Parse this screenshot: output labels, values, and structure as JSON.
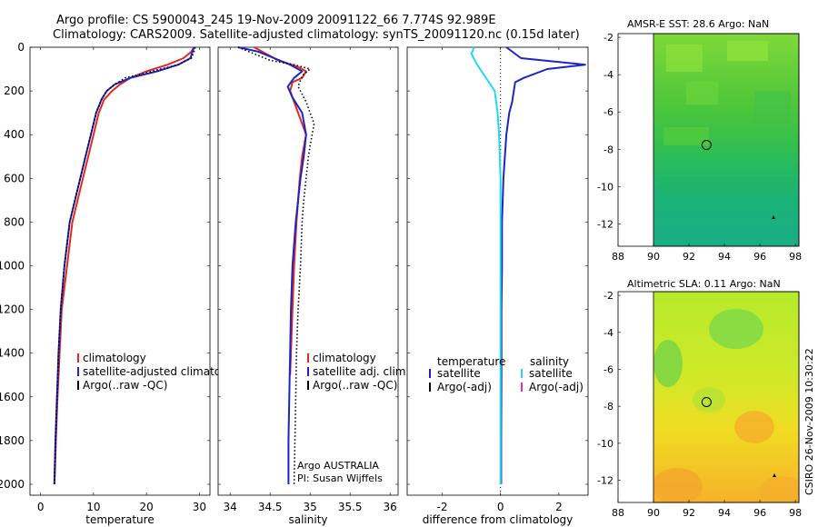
{
  "header": {
    "line1": "Argo profile: CS 5900043_245 19-Nov-2009 20091122_66 7.774S 92.989E",
    "line2": "Climatology: CARS2009. Satellite-adjusted climatology: synTS_20091120.nc (0.15d later)"
  },
  "footer_stamp": "CSIRO 26-Nov-2009 10:30:22",
  "colors": {
    "red": "#e8271c",
    "blue": "#1b25c7",
    "black": "#000000",
    "cyan": "#22d8f0",
    "magenta": "#e030c8"
  },
  "chart_data": [
    {
      "type": "line",
      "title": "",
      "xlabel": "temperature",
      "ylabel": "",
      "xlim": [
        -2,
        32
      ],
      "ylim": [
        2050,
        0
      ],
      "xticks": [
        0,
        10,
        20,
        30
      ],
      "yticks": [
        0,
        200,
        400,
        600,
        800,
        1000,
        1200,
        1400,
        1600,
        1800,
        2000
      ],
      "legend": [
        "climatology",
        "satellite-adjusted climatology",
        "Argo(..raw -QC)"
      ],
      "series": [
        {
          "name": "climatology",
          "color": "red",
          "x": [
            29,
            28.5,
            27,
            24,
            20,
            17,
            15,
            13.5,
            12,
            11,
            10,
            9,
            8,
            7,
            6,
            5,
            4,
            3.6,
            3.2,
            2.9,
            2.7,
            2.6
          ],
          "y": [
            0,
            20,
            50,
            80,
            110,
            140,
            170,
            200,
            240,
            300,
            400,
            500,
            600,
            700,
            800,
            1000,
            1200,
            1400,
            1600,
            1800,
            1950,
            2000
          ]
        },
        {
          "name": "satellite-adjusted climatology",
          "color": "blue",
          "x": [
            29,
            28.7,
            28.3,
            26,
            22,
            17,
            14,
            12.5,
            11.5,
            10.5,
            9.5,
            8.5,
            7.5,
            6.5,
            5.5,
            4.5,
            3.8,
            3.4,
            3.1,
            2.8,
            2.6
          ],
          "y": [
            0,
            20,
            50,
            80,
            110,
            140,
            170,
            200,
            240,
            300,
            400,
            500,
            600,
            700,
            800,
            1000,
            1200,
            1400,
            1600,
            1800,
            2000
          ]
        },
        {
          "name": "Argo(..raw -QC)",
          "color": "black",
          "dotted": true,
          "x": [
            29.2,
            29,
            28.5,
            26,
            21,
            16,
            14,
            12.5,
            11.5,
            10.5,
            9.5,
            8.5,
            7.5,
            6.5,
            5.5,
            4.5,
            3.8,
            3.4,
            3.1,
            2.8,
            2.6
          ],
          "y": [
            0,
            20,
            50,
            80,
            110,
            140,
            170,
            200,
            240,
            300,
            400,
            500,
            600,
            700,
            800,
            1000,
            1200,
            1400,
            1600,
            1800,
            2000
          ]
        }
      ]
    },
    {
      "type": "line",
      "title": "",
      "xlabel": "salinity",
      "ylabel": "",
      "xlim": [
        33.85,
        36.1
      ],
      "ylim": [
        2050,
        0
      ],
      "xticks": [
        34,
        34.5,
        35,
        35.5,
        36
      ],
      "xticklabels": [
        "34",
        "34.5",
        "35",
        "35.5",
        "36"
      ],
      "legend": [
        "climatology",
        "satellite adj. clim.",
        "Argo(..raw -QC)"
      ],
      "annotation": [
        "Argo AUSTRALIA",
        "PI: Susan Wijffels"
      ],
      "series": [
        {
          "name": "climatology",
          "color": "red",
          "x": [
            34.3,
            34.6,
            34.85,
            34.95,
            34.9,
            34.78,
            34.75,
            34.85,
            34.95,
            34.9,
            34.87,
            34.85,
            34.83,
            34.8,
            34.78,
            34.76,
            34.75,
            34.75
          ],
          "y": [
            0,
            60,
            90,
            110,
            140,
            160,
            200,
            300,
            400,
            500,
            600,
            700,
            800,
            1000,
            1200,
            1400,
            1500,
            1500
          ]
        },
        {
          "name": "satellite adj. clim.",
          "color": "blue",
          "x": [
            34.1,
            34.35,
            34.55,
            34.75,
            34.9,
            34.8,
            34.72,
            34.78,
            34.9,
            34.95,
            34.92,
            34.88,
            34.85,
            34.82,
            34.78,
            34.76,
            34.75,
            34.74,
            34.73,
            34.73
          ],
          "y": [
            0,
            20,
            50,
            80,
            110,
            140,
            180,
            230,
            300,
            400,
            500,
            600,
            700,
            800,
            1000,
            1200,
            1400,
            1600,
            1800,
            2000
          ]
        },
        {
          "name": "Argo(..raw -QC)",
          "color": "black",
          "dotted": true,
          "x": [
            34.1,
            34.3,
            34.5,
            34.8,
            35.0,
            34.9,
            34.85,
            34.95,
            35.05,
            35.0,
            34.98,
            34.95,
            34.92,
            34.9,
            34.88,
            34.85,
            34.83,
            34.82,
            34.81,
            34.8
          ],
          "y": [
            0,
            30,
            60,
            80,
            100,
            130,
            180,
            250,
            350,
            450,
            500,
            600,
            700,
            800,
            1000,
            1200,
            1400,
            1600,
            1800,
            2000
          ]
        }
      ]
    },
    {
      "type": "line",
      "title": "",
      "xlabel": "difference from climatology",
      "ylabel": "",
      "xlim": [
        -3.2,
        3
      ],
      "ylim": [
        2050,
        0
      ],
      "xticks": [
        -2,
        0,
        2
      ],
      "legend_left_title": "temperature",
      "legend_right_title": "salinity",
      "legend": [
        "satellite",
        "Argo(-adj)",
        "satellite",
        "Argo(-adj)"
      ],
      "series": [
        {
          "name": "temperature satellite",
          "color": "blue",
          "x": [
            0.2,
            0.7,
            2.9,
            1.6,
            0.8,
            0.5,
            0.4,
            0.3,
            0.2,
            0.1,
            0.05,
            0.05,
            0.03,
            0.03,
            0.02,
            0.02
          ],
          "y": [
            0,
            50,
            80,
            100,
            140,
            160,
            250,
            300,
            400,
            600,
            800,
            1000,
            1200,
            1500,
            1800,
            2000
          ]
        },
        {
          "name": "salinity satellite",
          "color": "cyan",
          "x": [
            -0.9,
            -1.0,
            -0.8,
            -0.6,
            -0.4,
            -0.2,
            -0.1,
            -0.05,
            0,
            0,
            0,
            0,
            0,
            0
          ],
          "y": [
            0,
            30,
            80,
            120,
            160,
            200,
            300,
            400,
            600,
            800,
            1000,
            1400,
            1800,
            2000
          ]
        }
      ]
    },
    {
      "type": "heatmap",
      "title": "AMSR-E SST: 28.6 Argo: NaN",
      "xlim": [
        88,
        98.2
      ],
      "ylim": [
        -13.2,
        -1.8
      ],
      "xticks": [
        88,
        90,
        92,
        94,
        96,
        98
      ],
      "yticks": [
        -2,
        -4,
        -6,
        -8,
        -10,
        -12
      ],
      "argo_position": {
        "lon": 92.99,
        "lat": -7.77
      }
    },
    {
      "type": "heatmap",
      "title": "Altimetric SLA: 0.11 Argo: NaN",
      "xlim": [
        88,
        98.2
      ],
      "ylim": [
        -13.2,
        -1.8
      ],
      "xticks": [
        88,
        90,
        92,
        94,
        96,
        98
      ],
      "yticks": [
        -2,
        -4,
        -6,
        -8,
        -10,
        -12
      ],
      "argo_position": {
        "lon": 92.99,
        "lat": -7.77
      }
    }
  ]
}
